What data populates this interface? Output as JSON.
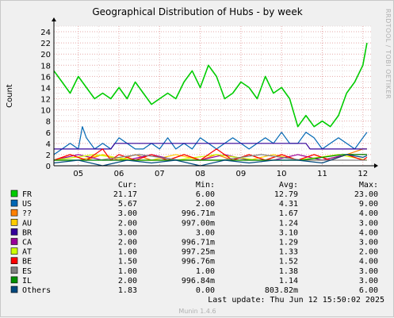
{
  "chart_data": {
    "type": "line",
    "title": "Geographical Distribution of Hubs - by week",
    "ylabel": "Count",
    "xlabel": "",
    "side_label": "RRDTOOL / TOBI OETIKER",
    "x_ticks": [
      "05",
      "06",
      "07",
      "08",
      "09",
      "10",
      "11",
      "12"
    ],
    "y_ticks": [
      0,
      2,
      4,
      6,
      8,
      10,
      12,
      14,
      16,
      18,
      20,
      22,
      24
    ],
    "ylim": [
      0,
      25
    ],
    "grid": true,
    "legend_columns": [
      "Cur:",
      "Min:",
      "Avg:",
      "Max:"
    ],
    "series": [
      {
        "name": "FR",
        "color": "#00cc00",
        "cur": "21.17",
        "min": "6.00",
        "avg": "12.79",
        "max": "23.00",
        "x": [
          4.4,
          4.6,
          4.8,
          5.0,
          5.2,
          5.4,
          5.6,
          5.8,
          6.0,
          6.2,
          6.4,
          6.6,
          6.8,
          7.0,
          7.2,
          7.4,
          7.6,
          7.8,
          8.0,
          8.2,
          8.4,
          8.6,
          8.8,
          9.0,
          9.2,
          9.4,
          9.6,
          9.8,
          10.0,
          10.2,
          10.4,
          10.6,
          10.8,
          11.0,
          11.2,
          11.4,
          11.6,
          11.8,
          12.0,
          12.1
        ],
        "y": [
          17,
          15,
          13,
          16,
          14,
          12,
          13,
          12,
          14,
          12,
          15,
          13,
          11,
          12,
          13,
          12,
          15,
          17,
          14,
          18,
          16,
          12,
          13,
          15,
          14,
          12,
          16,
          13,
          14,
          12,
          7,
          9,
          7,
          8,
          7,
          9,
          13,
          15,
          18,
          22
        ]
      },
      {
        "name": "US",
        "color": "#0066b3",
        "cur": "5.67",
        "min": "2.00",
        "avg": "4.31",
        "max": "9.00",
        "x": [
          4.4,
          4.6,
          4.8,
          5.0,
          5.1,
          5.2,
          5.4,
          5.6,
          5.8,
          6.0,
          6.2,
          6.4,
          6.6,
          6.8,
          7.0,
          7.2,
          7.4,
          7.6,
          7.8,
          8.0,
          8.2,
          8.4,
          8.6,
          8.8,
          9.0,
          9.2,
          9.4,
          9.6,
          9.8,
          10.0,
          10.2,
          10.4,
          10.6,
          10.8,
          11.0,
          11.2,
          11.4,
          11.6,
          11.8,
          12.0,
          12.1
        ],
        "y": [
          2,
          3,
          4,
          3,
          7,
          5,
          3,
          4,
          3,
          5,
          4,
          3,
          3,
          4,
          3,
          5,
          3,
          4,
          3,
          5,
          4,
          3,
          4,
          5,
          4,
          3,
          4,
          5,
          4,
          6,
          4,
          4,
          6,
          5,
          3,
          4,
          5,
          4,
          3,
          5,
          6
        ]
      },
      {
        "name": "??",
        "color": "#ff8000",
        "cur": "3.00",
        "min": "996.71m",
        "avg": "1.67",
        "max": "4.00",
        "x": [
          4.4,
          4.8,
          5.2,
          5.6,
          6.0,
          6.4,
          6.8,
          7.2,
          7.6,
          8.0,
          8.4,
          8.8,
          9.2,
          9.6,
          10.0,
          10.4,
          10.8,
          11.2,
          11.6,
          12.0,
          12.1
        ],
        "y": [
          1,
          2,
          1,
          2,
          1,
          2,
          1,
          1,
          2,
          1,
          2,
          1,
          2,
          1,
          2,
          1,
          2,
          1,
          2,
          3,
          3
        ]
      },
      {
        "name": "AU",
        "color": "#ffcc00",
        "cur": "2.00",
        "min": "997.00m",
        "avg": "1.24",
        "max": "3.00",
        "x": [
          4.4,
          5.0,
          5.6,
          6.2,
          6.8,
          7.4,
          8.0,
          8.6,
          9.2,
          9.8,
          10.4,
          11.0,
          11.6,
          12.1
        ],
        "y": [
          1,
          1,
          2,
          1,
          1,
          2,
          1,
          1,
          1,
          2,
          1,
          1,
          2,
          2
        ]
      },
      {
        "name": "BR",
        "color": "#330099",
        "cur": "3.00",
        "min": "3.00",
        "avg": "3.10",
        "max": "4.00",
        "x": [
          4.4,
          5.8,
          5.9,
          10.6,
          10.7,
          12.1
        ],
        "y": [
          3,
          3,
          4,
          4,
          3,
          3
        ]
      },
      {
        "name": "CA",
        "color": "#990099",
        "cur": "2.00",
        "min": "996.71m",
        "avg": "1.29",
        "max": "3.00",
        "x": [
          4.4,
          5.0,
          5.6,
          6.2,
          6.8,
          7.4,
          8.0,
          8.6,
          9.2,
          9.8,
          10.4,
          11.0,
          11.6,
          12.1
        ],
        "y": [
          1,
          2,
          1,
          1,
          2,
          1,
          1,
          2,
          1,
          1,
          2,
          1,
          2,
          2
        ]
      },
      {
        "name": "AT",
        "color": "#ccff00",
        "cur": "1.00",
        "min": "997.25m",
        "avg": "1.33",
        "max": "2.00",
        "x": [
          4.4,
          5.4,
          6.4,
          7.4,
          8.4,
          9.4,
          10.4,
          11.4,
          12.1
        ],
        "y": [
          1,
          2,
          1,
          1,
          2,
          1,
          1,
          2,
          1
        ]
      },
      {
        "name": "BE",
        "color": "#ff0000",
        "cur": "1.50",
        "min": "996.76m",
        "avg": "1.52",
        "max": "4.00",
        "x": [
          4.4,
          4.8,
          5.2,
          5.6,
          5.8,
          6.0,
          6.4,
          6.8,
          7.2,
          7.6,
          8.0,
          8.4,
          8.8,
          9.2,
          9.6,
          10.0,
          10.4,
          10.8,
          11.2,
          11.6,
          12.0,
          12.1
        ],
        "y": [
          1,
          2,
          1,
          3,
          1,
          2,
          1,
          2,
          1,
          2,
          1,
          3,
          1,
          2,
          1,
          2,
          1,
          2,
          1,
          2,
          1,
          1.5
        ]
      },
      {
        "name": "ES",
        "color": "#808080",
        "cur": "1.00",
        "min": "1.00",
        "avg": "1.38",
        "max": "3.00",
        "x": [
          4.4,
          5.5,
          6.5,
          7.5,
          8.5,
          9.5,
          10.5,
          11.5,
          12.1
        ],
        "y": [
          1,
          1,
          2,
          1,
          1,
          2,
          1,
          1,
          1
        ]
      },
      {
        "name": "IL",
        "color": "#008f00",
        "cur": "2.00",
        "min": "996.84m",
        "avg": "1.14",
        "max": "3.00",
        "x": [
          4.4,
          6.0,
          7.5,
          9.0,
          10.5,
          11.5,
          12.1
        ],
        "y": [
          1,
          1,
          1,
          1,
          1,
          2,
          2
        ]
      },
      {
        "name": "Others",
        "color": "#00487d",
        "cur": "1.83",
        "min": "0.00",
        "avg": "803.82m",
        "max": "6.00",
        "x": [
          4.4,
          5.0,
          5.6,
          6.2,
          6.8,
          7.4,
          8.0,
          8.6,
          9.2,
          9.8,
          10.4,
          11.0,
          11.6,
          12.0,
          12.1
        ],
        "y": [
          0.5,
          1,
          0,
          1,
          0.5,
          1,
          0,
          1,
          0.5,
          1,
          1,
          0.5,
          2,
          1.5,
          1.8
        ]
      }
    ]
  },
  "footer": {
    "last_update": "Last update:  Thu Jun 12 15:50:02 2025",
    "version": "Munin 1.4.6"
  }
}
